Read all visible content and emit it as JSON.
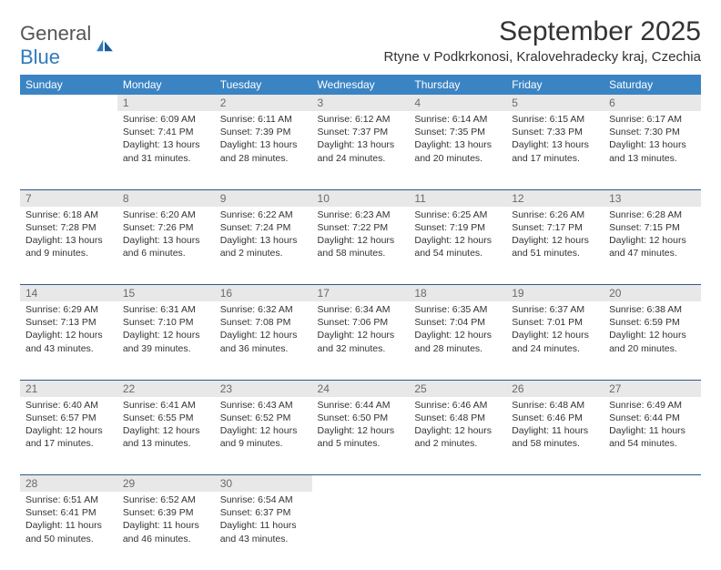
{
  "logo": {
    "text_general": "General",
    "text_blue": "Blue"
  },
  "title": "September 2025",
  "location": "Rtyne v Podkrkonosi, Kralovehradecky kraj, Czechia",
  "colors": {
    "header_bg": "#3b84c4",
    "header_text": "#ffffff",
    "daynum_bg": "#e8e8e8",
    "daynum_text": "#6a6a6a",
    "row_divider": "#2d5a87",
    "body_text": "#333333",
    "logo_gray": "#555555",
    "logo_blue": "#2f7bbf"
  },
  "typography": {
    "title_fontsize": 30,
    "location_fontsize": 15,
    "dayheader_fontsize": 12,
    "daynum_fontsize": 12,
    "cell_fontsize": 10.5
  },
  "day_headers": [
    "Sunday",
    "Monday",
    "Tuesday",
    "Wednesday",
    "Thursday",
    "Friday",
    "Saturday"
  ],
  "weeks": [
    {
      "nums": [
        "",
        "1",
        "2",
        "3",
        "4",
        "5",
        "6"
      ],
      "cells": [
        null,
        {
          "sunrise": "Sunrise: 6:09 AM",
          "sunset": "Sunset: 7:41 PM",
          "daylight": "Daylight: 13 hours and 31 minutes."
        },
        {
          "sunrise": "Sunrise: 6:11 AM",
          "sunset": "Sunset: 7:39 PM",
          "daylight": "Daylight: 13 hours and 28 minutes."
        },
        {
          "sunrise": "Sunrise: 6:12 AM",
          "sunset": "Sunset: 7:37 PM",
          "daylight": "Daylight: 13 hours and 24 minutes."
        },
        {
          "sunrise": "Sunrise: 6:14 AM",
          "sunset": "Sunset: 7:35 PM",
          "daylight": "Daylight: 13 hours and 20 minutes."
        },
        {
          "sunrise": "Sunrise: 6:15 AM",
          "sunset": "Sunset: 7:33 PM",
          "daylight": "Daylight: 13 hours and 17 minutes."
        },
        {
          "sunrise": "Sunrise: 6:17 AM",
          "sunset": "Sunset: 7:30 PM",
          "daylight": "Daylight: 13 hours and 13 minutes."
        }
      ]
    },
    {
      "nums": [
        "7",
        "8",
        "9",
        "10",
        "11",
        "12",
        "13"
      ],
      "cells": [
        {
          "sunrise": "Sunrise: 6:18 AM",
          "sunset": "Sunset: 7:28 PM",
          "daylight": "Daylight: 13 hours and 9 minutes."
        },
        {
          "sunrise": "Sunrise: 6:20 AM",
          "sunset": "Sunset: 7:26 PM",
          "daylight": "Daylight: 13 hours and 6 minutes."
        },
        {
          "sunrise": "Sunrise: 6:22 AM",
          "sunset": "Sunset: 7:24 PM",
          "daylight": "Daylight: 13 hours and 2 minutes."
        },
        {
          "sunrise": "Sunrise: 6:23 AM",
          "sunset": "Sunset: 7:22 PM",
          "daylight": "Daylight: 12 hours and 58 minutes."
        },
        {
          "sunrise": "Sunrise: 6:25 AM",
          "sunset": "Sunset: 7:19 PM",
          "daylight": "Daylight: 12 hours and 54 minutes."
        },
        {
          "sunrise": "Sunrise: 6:26 AM",
          "sunset": "Sunset: 7:17 PM",
          "daylight": "Daylight: 12 hours and 51 minutes."
        },
        {
          "sunrise": "Sunrise: 6:28 AM",
          "sunset": "Sunset: 7:15 PM",
          "daylight": "Daylight: 12 hours and 47 minutes."
        }
      ]
    },
    {
      "nums": [
        "14",
        "15",
        "16",
        "17",
        "18",
        "19",
        "20"
      ],
      "cells": [
        {
          "sunrise": "Sunrise: 6:29 AM",
          "sunset": "Sunset: 7:13 PM",
          "daylight": "Daylight: 12 hours and 43 minutes."
        },
        {
          "sunrise": "Sunrise: 6:31 AM",
          "sunset": "Sunset: 7:10 PM",
          "daylight": "Daylight: 12 hours and 39 minutes."
        },
        {
          "sunrise": "Sunrise: 6:32 AM",
          "sunset": "Sunset: 7:08 PM",
          "daylight": "Daylight: 12 hours and 36 minutes."
        },
        {
          "sunrise": "Sunrise: 6:34 AM",
          "sunset": "Sunset: 7:06 PM",
          "daylight": "Daylight: 12 hours and 32 minutes."
        },
        {
          "sunrise": "Sunrise: 6:35 AM",
          "sunset": "Sunset: 7:04 PM",
          "daylight": "Daylight: 12 hours and 28 minutes."
        },
        {
          "sunrise": "Sunrise: 6:37 AM",
          "sunset": "Sunset: 7:01 PM",
          "daylight": "Daylight: 12 hours and 24 minutes."
        },
        {
          "sunrise": "Sunrise: 6:38 AM",
          "sunset": "Sunset: 6:59 PM",
          "daylight": "Daylight: 12 hours and 20 minutes."
        }
      ]
    },
    {
      "nums": [
        "21",
        "22",
        "23",
        "24",
        "25",
        "26",
        "27"
      ],
      "cells": [
        {
          "sunrise": "Sunrise: 6:40 AM",
          "sunset": "Sunset: 6:57 PM",
          "daylight": "Daylight: 12 hours and 17 minutes."
        },
        {
          "sunrise": "Sunrise: 6:41 AM",
          "sunset": "Sunset: 6:55 PM",
          "daylight": "Daylight: 12 hours and 13 minutes."
        },
        {
          "sunrise": "Sunrise: 6:43 AM",
          "sunset": "Sunset: 6:52 PM",
          "daylight": "Daylight: 12 hours and 9 minutes."
        },
        {
          "sunrise": "Sunrise: 6:44 AM",
          "sunset": "Sunset: 6:50 PM",
          "daylight": "Daylight: 12 hours and 5 minutes."
        },
        {
          "sunrise": "Sunrise: 6:46 AM",
          "sunset": "Sunset: 6:48 PM",
          "daylight": "Daylight: 12 hours and 2 minutes."
        },
        {
          "sunrise": "Sunrise: 6:48 AM",
          "sunset": "Sunset: 6:46 PM",
          "daylight": "Daylight: 11 hours and 58 minutes."
        },
        {
          "sunrise": "Sunrise: 6:49 AM",
          "sunset": "Sunset: 6:44 PM",
          "daylight": "Daylight: 11 hours and 54 minutes."
        }
      ]
    },
    {
      "nums": [
        "28",
        "29",
        "30",
        "",
        "",
        "",
        ""
      ],
      "cells": [
        {
          "sunrise": "Sunrise: 6:51 AM",
          "sunset": "Sunset: 6:41 PM",
          "daylight": "Daylight: 11 hours and 50 minutes."
        },
        {
          "sunrise": "Sunrise: 6:52 AM",
          "sunset": "Sunset: 6:39 PM",
          "daylight": "Daylight: 11 hours and 46 minutes."
        },
        {
          "sunrise": "Sunrise: 6:54 AM",
          "sunset": "Sunset: 6:37 PM",
          "daylight": "Daylight: 11 hours and 43 minutes."
        },
        null,
        null,
        null,
        null
      ]
    }
  ]
}
